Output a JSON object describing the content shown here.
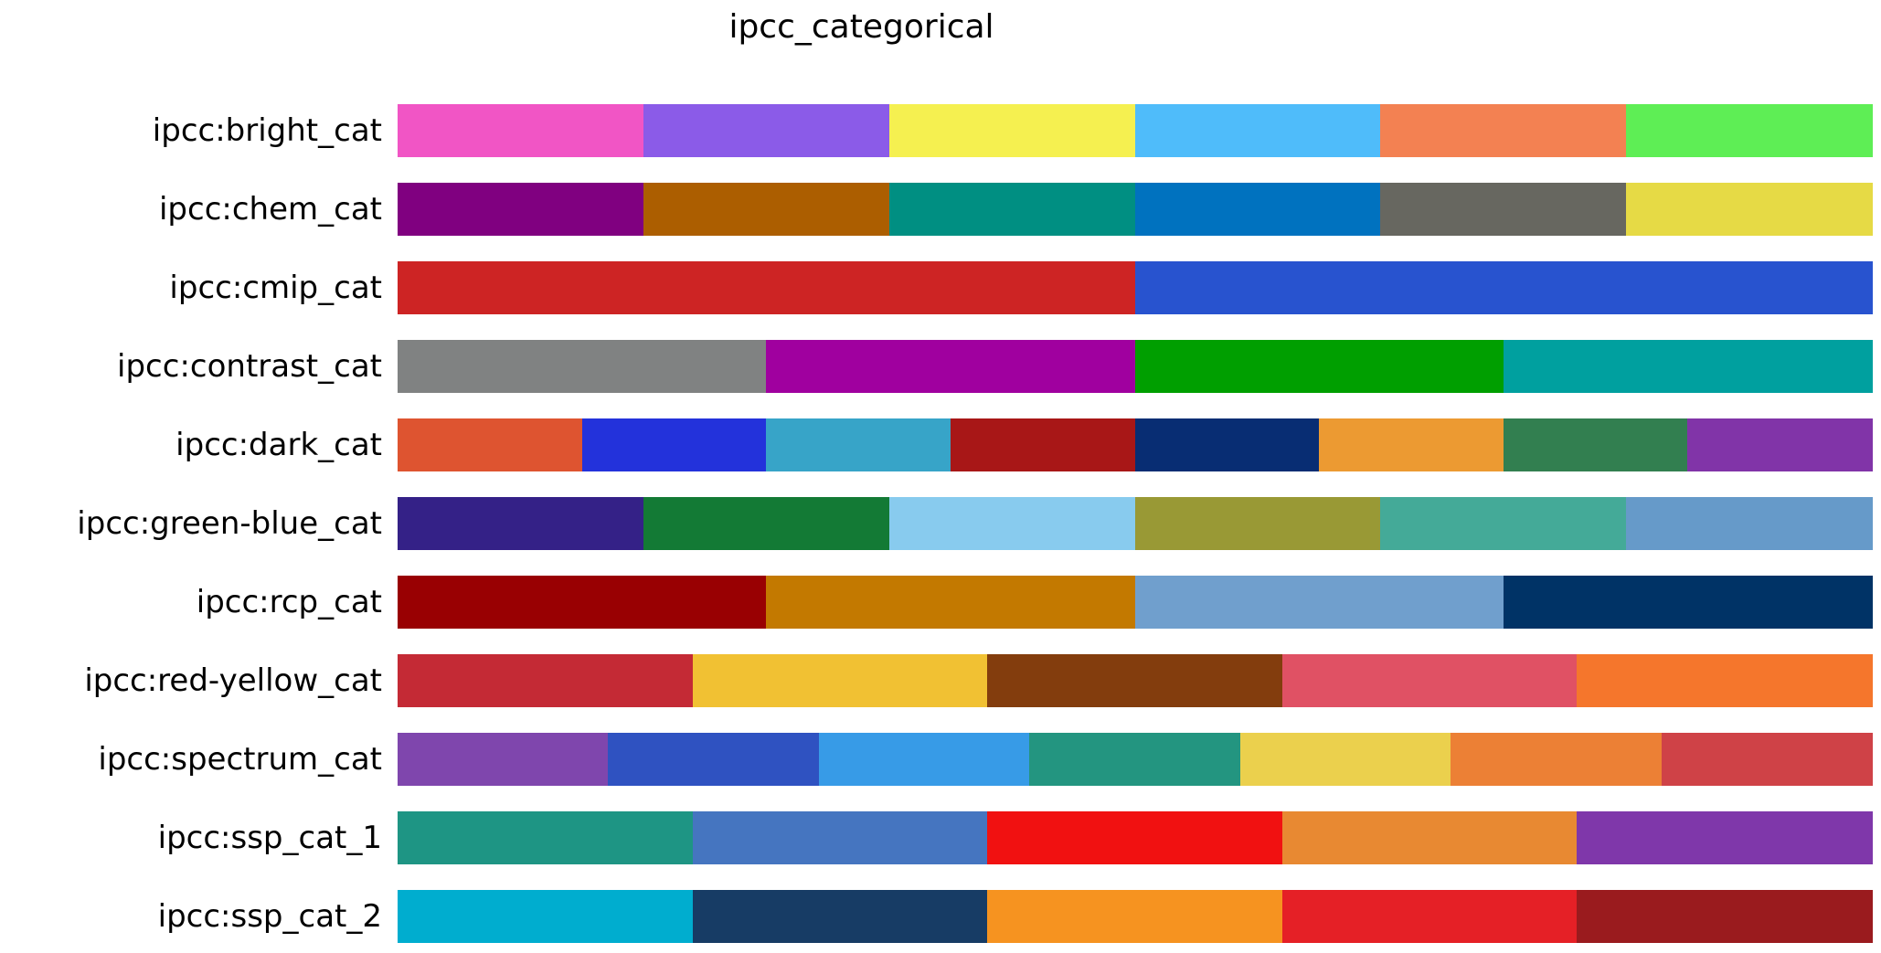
{
  "chart_data": {
    "type": "table",
    "title": "ipcc_categorical",
    "rows": [
      {
        "name": "ipcc:bright_cat",
        "colors": [
          "#F155C5",
          "#8B5BE8",
          "#F5F050",
          "#4FBCFA",
          "#F38152",
          "#5EEE55"
        ]
      },
      {
        "name": "ipcc:chem_cat",
        "colors": [
          "#800080",
          "#AC5E00",
          "#008F82",
          "#0072BF",
          "#676760",
          "#E6DA45"
        ]
      },
      {
        "name": "ipcc:cmip_cat",
        "colors": [
          "#CD2424",
          "#2853CF"
        ]
      },
      {
        "name": "ipcc:contrast_cat",
        "colors": [
          "#808282",
          "#A0009F",
          "#009F00",
          "#00A09F"
        ]
      },
      {
        "name": "ipcc:dark_cat",
        "colors": [
          "#DE5430",
          "#2332DB",
          "#37A4C8",
          "#A81717",
          "#082D73",
          "#EC9A32",
          "#327F50",
          "#8134A8"
        ]
      },
      {
        "name": "ipcc:green-blue_cat",
        "colors": [
          "#342187",
          "#137A35",
          "#88CBEE",
          "#999935",
          "#44AA98",
          "#669AC9"
        ]
      },
      {
        "name": "ipcc:rcp_cat",
        "colors": [
          "#990002",
          "#C37900",
          "#709FCD",
          "#003366"
        ]
      },
      {
        "name": "ipcc:red-yellow_cat",
        "colors": [
          "#C42A35",
          "#F1C133",
          "#833D0D",
          "#E05164",
          "#F5762C"
        ]
      },
      {
        "name": "ipcc:spectrum_cat",
        "colors": [
          "#7F46AD",
          "#2F52C1",
          "#379BE7",
          "#239580",
          "#EBD04D",
          "#EC8035",
          "#CF4247"
        ]
      },
      {
        "name": "ipcc:ssp_cat_1",
        "colors": [
          "#1E9584",
          "#4575C0",
          "#F11111",
          "#E88932",
          "#7F37AA"
        ]
      },
      {
        "name": "ipcc:ssp_cat_2",
        "colors": [
          "#00ADCF",
          "#173C65",
          "#F69320",
          "#E52026",
          "#9A1B1E"
        ]
      }
    ]
  }
}
